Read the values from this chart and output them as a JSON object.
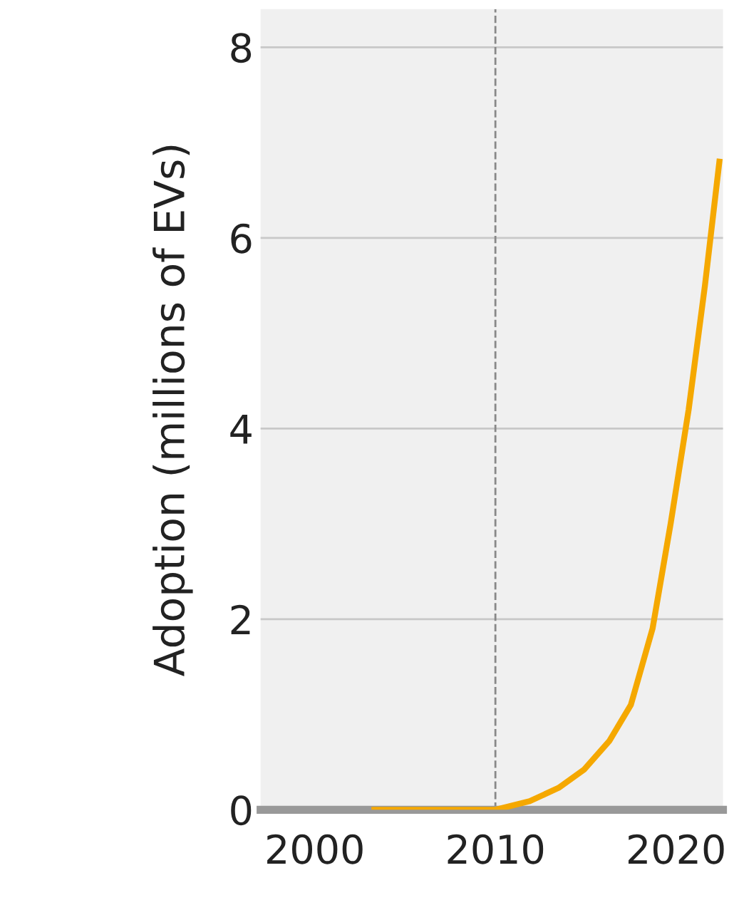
{
  "chart_data": {
    "type": "line",
    "ylabel": "Adoption (millions of EVs)",
    "x": [
      2003.3,
      2006,
      2010,
      2011.9,
      2013.5,
      2014.9,
      2016.3,
      2017.5,
      2018.7,
      2019.7,
      2020.7,
      2021.6,
      2022.4
    ],
    "series": [
      {
        "color": "#f5a800",
        "values": [
          0,
          0,
          0,
          0.09,
          0.23,
          0.42,
          0.72,
          1.1,
          1.9,
          3.0,
          4.2,
          5.5,
          6.8
        ]
      }
    ],
    "xlim": [
      1997,
      2022.6
    ],
    "ylim": [
      0,
      8.4
    ],
    "xticks": [
      2000,
      2010,
      2020
    ],
    "yticks": [
      0,
      2,
      4,
      6,
      8
    ],
    "grid": "y",
    "ref_lines": [
      {
        "axis": "x",
        "value": 2010,
        "color": "#888888",
        "line_style": "dashed"
      }
    ],
    "legend": false,
    "marker": "none",
    "line_style": "solid"
  }
}
